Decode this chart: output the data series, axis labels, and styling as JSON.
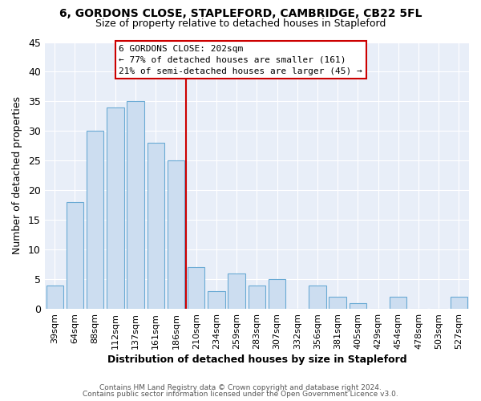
{
  "title1": "6, GORDONS CLOSE, STAPLEFORD, CAMBRIDGE, CB22 5FL",
  "title2": "Size of property relative to detached houses in Stapleford",
  "xlabel": "Distribution of detached houses by size in Stapleford",
  "ylabel": "Number of detached properties",
  "bar_labels": [
    "39sqm",
    "64sqm",
    "88sqm",
    "112sqm",
    "137sqm",
    "161sqm",
    "186sqm",
    "210sqm",
    "234sqm",
    "259sqm",
    "283sqm",
    "307sqm",
    "332sqm",
    "356sqm",
    "381sqm",
    "405sqm",
    "429sqm",
    "454sqm",
    "478sqm",
    "503sqm",
    "527sqm"
  ],
  "bar_values": [
    4,
    18,
    30,
    34,
    35,
    28,
    25,
    7,
    3,
    6,
    4,
    5,
    0,
    4,
    2,
    1,
    0,
    2,
    0,
    0,
    2
  ],
  "bar_color": "#ccddf0",
  "bar_edge_color": "#6aaad4",
  "vline_color": "#cc0000",
  "ylim": [
    0,
    45
  ],
  "yticks": [
    0,
    5,
    10,
    15,
    20,
    25,
    30,
    35,
    40,
    45
  ],
  "annotation_title": "6 GORDONS CLOSE: 202sqm",
  "annotation_line1": "← 77% of detached houses are smaller (161)",
  "annotation_line2": "21% of semi-detached houses are larger (45) →",
  "annotation_box_color": "#ffffff",
  "annotation_border_color": "#cc0000",
  "footer1": "Contains HM Land Registry data © Crown copyright and database right 2024.",
  "footer2": "Contains public sector information licensed under the Open Government Licence v3.0.",
  "bg_color": "#e8eef8",
  "grid_color": "#ffffff"
}
